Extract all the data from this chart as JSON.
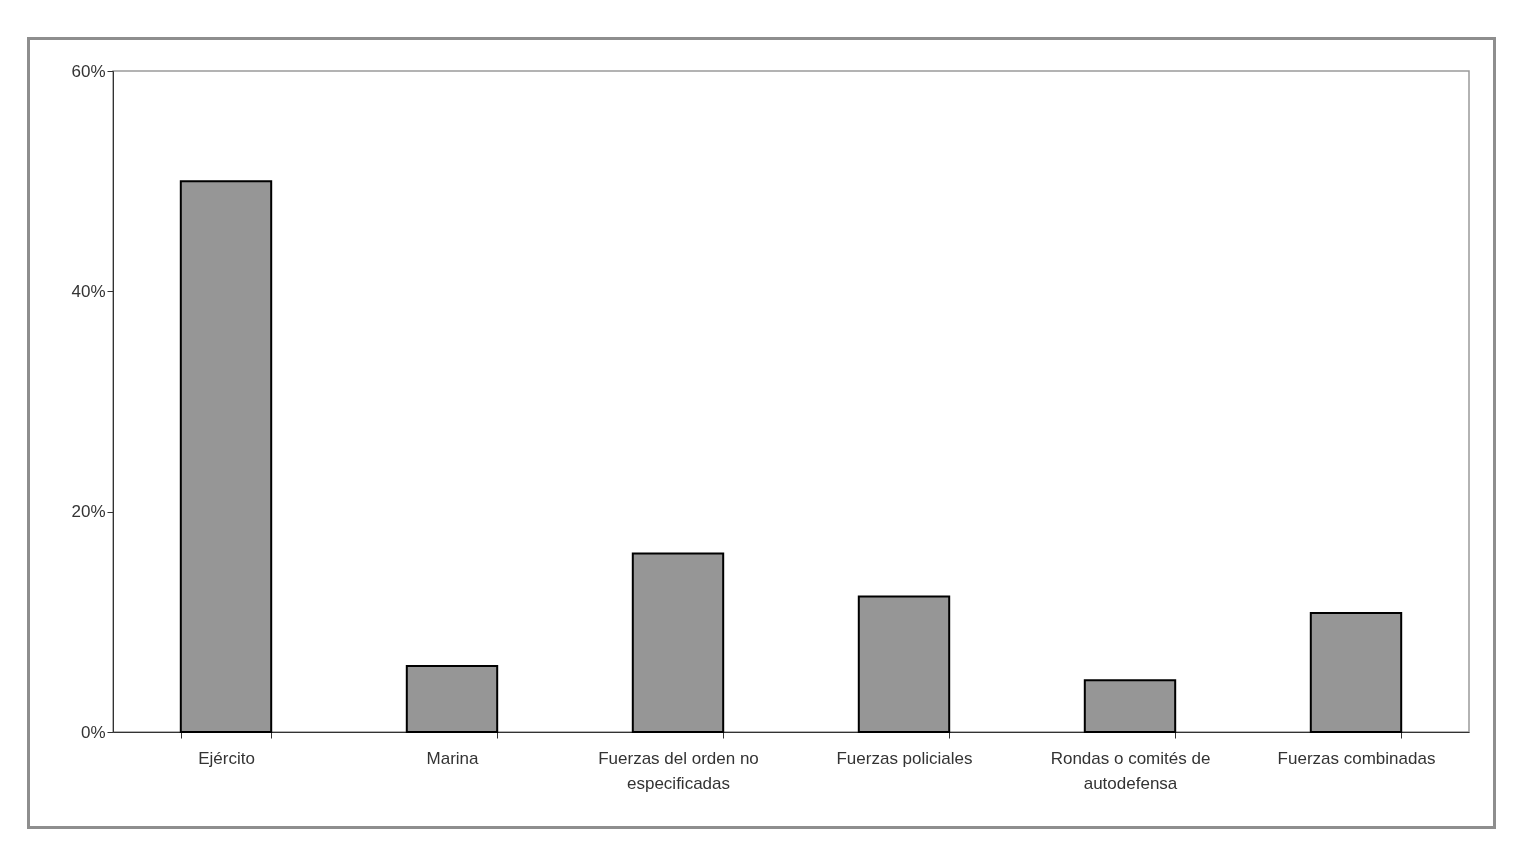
{
  "chart_data": {
    "type": "bar",
    "categories": [
      "Ejército",
      "Marina",
      "Fuerzas del orden no especificadas",
      "Fuerzas policiales",
      "Rondas o comités de autodefensa",
      "Fuerzas combinadas"
    ],
    "values": [
      50.0,
      6.0,
      16.2,
      12.3,
      4.7,
      10.8
    ],
    "color": "#969696",
    "ylim": [
      0,
      60
    ],
    "yticks": [
      {
        "value": 0,
        "label": "0%"
      },
      {
        "value": 20,
        "label": "20%"
      },
      {
        "value": 40,
        "label": "40%"
      },
      {
        "value": 60,
        "label": "60%"
      }
    ],
    "grid": false
  }
}
